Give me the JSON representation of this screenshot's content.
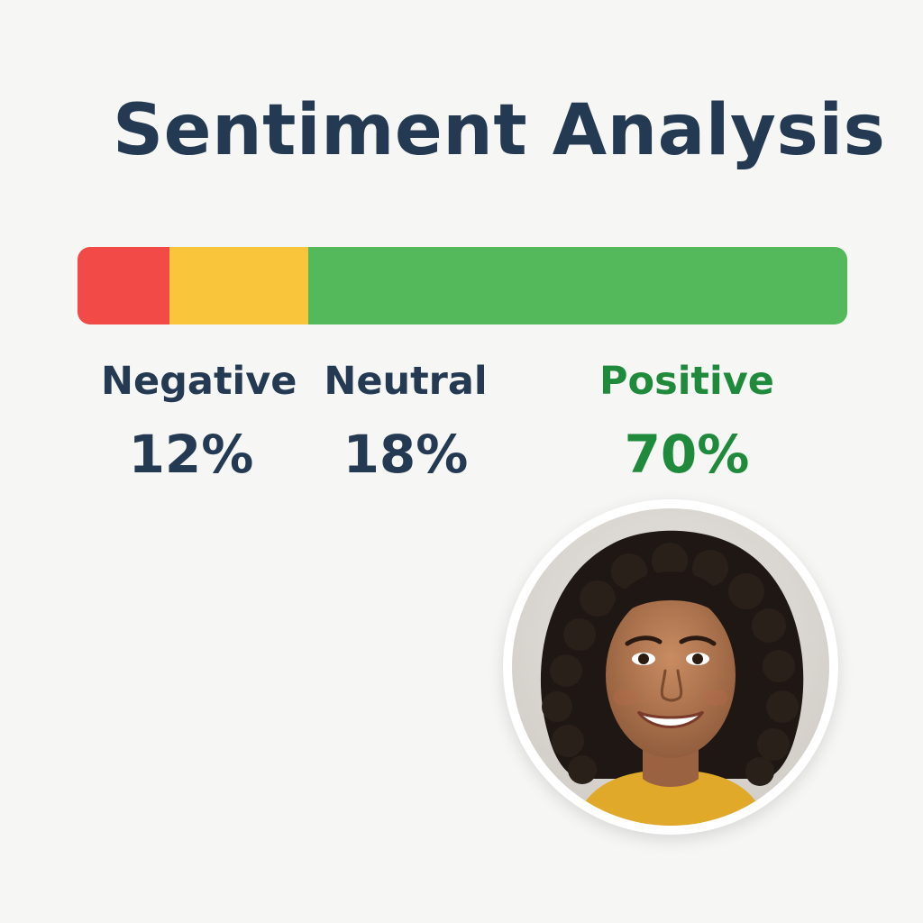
{
  "header": {
    "title": "Sentiment Analysis"
  },
  "sentiment": {
    "segments": [
      {
        "key": "negative",
        "label": "Negative",
        "value_text": "12%",
        "value": 12,
        "color": "#f14a47",
        "text_color": "#243a52"
      },
      {
        "key": "neutral",
        "label": "Neutral",
        "value_text": "18%",
        "value": 18,
        "color": "#f8c53b",
        "text_color": "#243a52"
      },
      {
        "key": "positive",
        "label": "Positive",
        "value_text": "70%",
        "value": 70,
        "color": "#53b95b",
        "text_color": "#1f8a3b"
      }
    ]
  },
  "avatar": {
    "icon": "user-portrait"
  }
}
